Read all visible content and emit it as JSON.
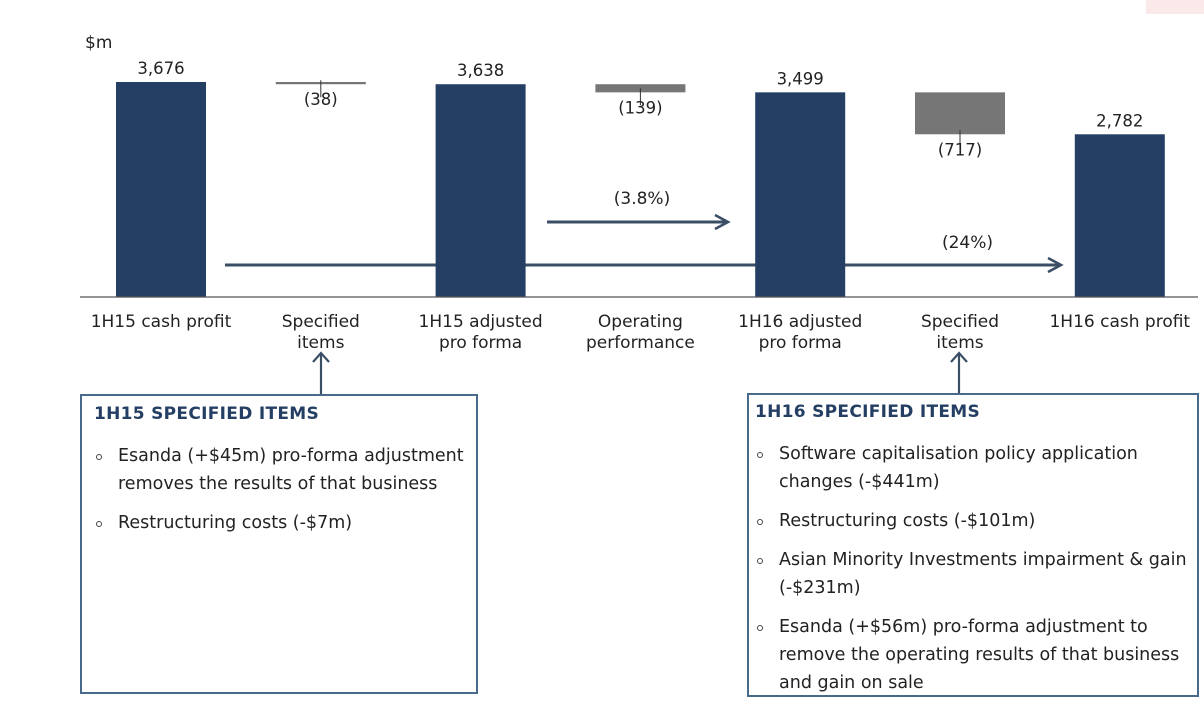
{
  "colors": {
    "total_bar": "#243f63",
    "change_bar": "#767677",
    "arrow": "#3a4f66",
    "axis": "#555555",
    "box_border": "#4a6a8c",
    "box_heading": "#243f63",
    "corner_swatch": "#fbe8e8"
  },
  "chart_data": {
    "type": "bar",
    "variant": "waterfall",
    "ylabel": "$m",
    "categories": [
      "1H15 cash profit",
      "Specified items",
      "1H15 adjusted pro forma",
      "Operating performance",
      "1H16 adjusted pro forma",
      "Specified items",
      "1H16 cash profit"
    ],
    "category_lines": [
      [
        "1H15 cash profit"
      ],
      [
        "Specified",
        "items"
      ],
      [
        "1H15 adjusted",
        "pro forma"
      ],
      [
        "Operating",
        "performance"
      ],
      [
        "1H16 adjusted",
        "pro forma"
      ],
      [
        "Specified",
        "items"
      ],
      [
        "1H16 cash profit"
      ]
    ],
    "values": [
      3676,
      -38,
      3638,
      -139,
      3499,
      -717,
      2782
    ],
    "bar_kind": [
      "total",
      "change",
      "total",
      "change",
      "total",
      "change",
      "total"
    ],
    "value_labels": [
      "3,676",
      "(38)",
      "3,638",
      "(139)",
      "3,499",
      "(717)",
      "2,782"
    ],
    "ylim": [
      0,
      3800
    ],
    "grid": false,
    "annotations": [
      {
        "text": "(3.8%)",
        "from_category": 3,
        "to_category": 4
      },
      {
        "text": "(24%)",
        "from_category": 1,
        "to_category": 6
      }
    ]
  },
  "boxes": [
    {
      "title": "1H15 SPECIFIED ITEMS",
      "items": [
        "Esanda (+$45m) pro-forma adjustment removes the results of that business",
        "Restructuring costs (-$7m)"
      ]
    },
    {
      "title": "1H16 SPECIFIED ITEMS",
      "items": [
        "Software capitalisation policy application changes (-$441m)",
        "Restructuring costs (-$101m)",
        "Asian Minority Investments impairment & gain (-$231m)",
        "Esanda (+$56m) pro-forma adjustment to remove the operating results of that business and gain on sale"
      ]
    }
  ]
}
